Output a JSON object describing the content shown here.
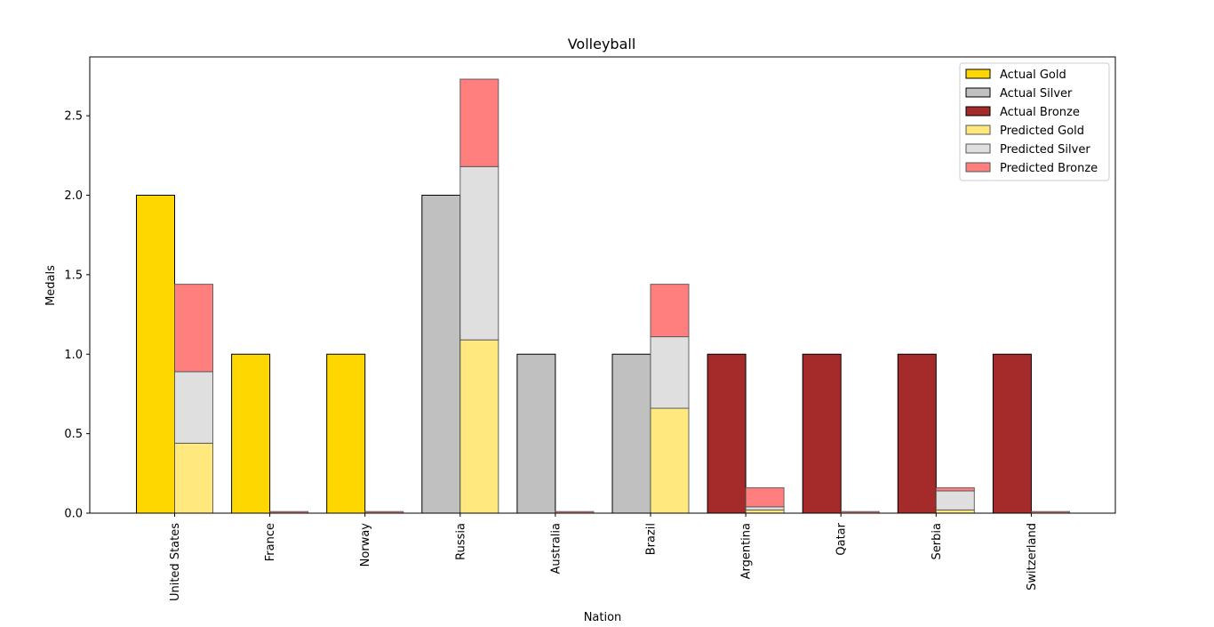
{
  "chart_data": {
    "type": "bar",
    "title": "Volleyball",
    "xlabel": "Nation",
    "ylabel": "Medals",
    "ylim": [
      0,
      2.87
    ],
    "yticks": [
      "0.0",
      "0.5",
      "1.0",
      "1.5",
      "2.0",
      "2.5"
    ],
    "ytick_values": [
      0,
      0.5,
      1.0,
      1.5,
      2.0,
      2.5
    ],
    "categories": [
      "United States",
      "France",
      "Norway",
      "Russia",
      "Australia",
      "Brazil",
      "Argentina",
      "Qatar",
      "Serbia",
      "Switzerland"
    ],
    "series": [
      {
        "name": "Actual Gold",
        "group": "actual",
        "values": [
          2,
          1,
          1,
          0,
          0,
          0,
          0,
          0,
          0,
          0
        ]
      },
      {
        "name": "Actual Silver",
        "group": "actual",
        "values": [
          0,
          0,
          0,
          2,
          1,
          1,
          0,
          0,
          0,
          0
        ]
      },
      {
        "name": "Actual Bronze",
        "group": "actual",
        "values": [
          0,
          0,
          0,
          0,
          0,
          0,
          1,
          1,
          1,
          1
        ]
      },
      {
        "name": "Predicted Gold",
        "group": "predicted",
        "values": [
          0.44,
          0.0,
          0.0,
          1.09,
          0.0,
          0.66,
          0.02,
          0.0,
          0.02,
          0.0
        ]
      },
      {
        "name": "Predicted Silver",
        "group": "predicted",
        "values": [
          0.45,
          0.0,
          0.0,
          1.09,
          0.0,
          0.45,
          0.02,
          0.0,
          0.12,
          0.0
        ]
      },
      {
        "name": "Predicted Bronze",
        "group": "predicted",
        "values": [
          0.55,
          0.01,
          0.01,
          0.55,
          0.01,
          0.33,
          0.12,
          0.01,
          0.02,
          0.01
        ]
      }
    ],
    "colors": {
      "Actual Gold": "#ffd700",
      "Actual Silver": "#c0c0c0",
      "Actual Bronze": "#a52a2a",
      "Predicted Gold": "#ffe97f",
      "Predicted Silver": "#dfdfdf",
      "Predicted Bronze": "#ff7f7f"
    },
    "legend_position": "top-right",
    "grid": false
  }
}
